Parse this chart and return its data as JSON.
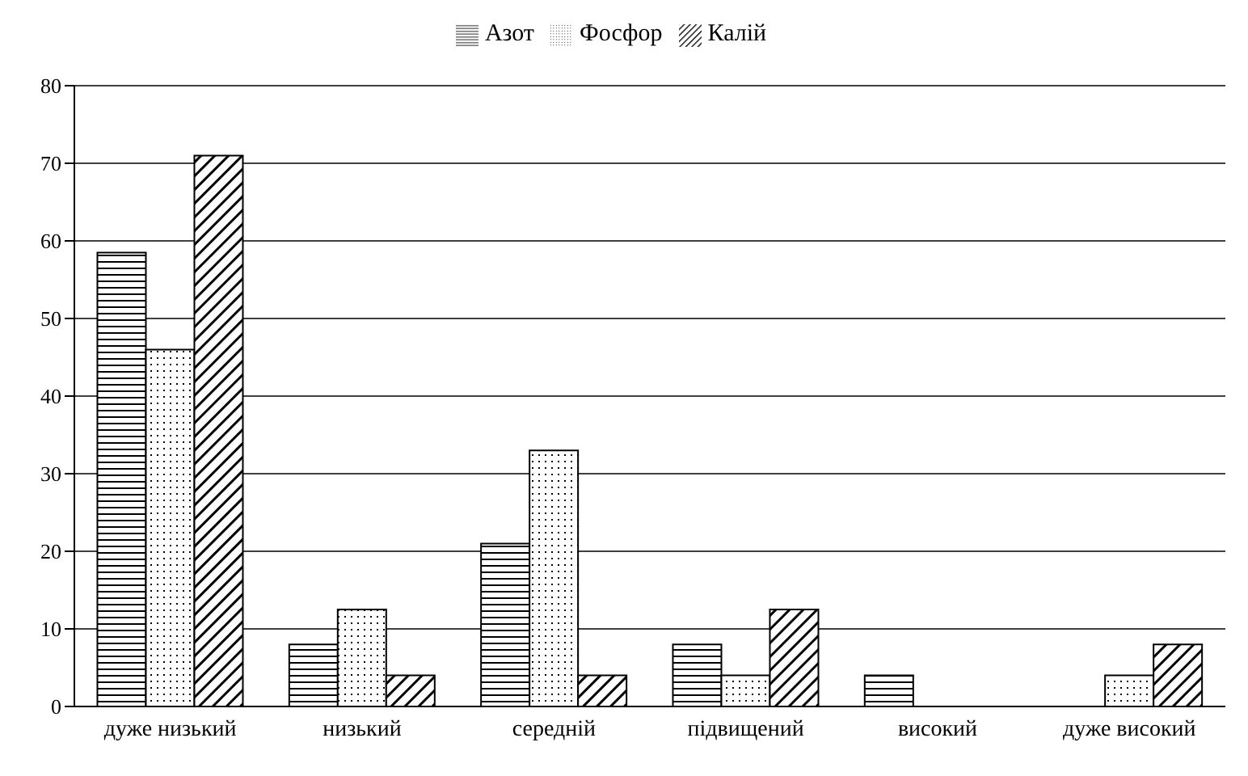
{
  "chart_data": {
    "type": "bar",
    "categories": [
      "дуже низький",
      "низький",
      "середній",
      "підвищений",
      "високий",
      "дуже високий"
    ],
    "series": [
      {
        "name": "Азот",
        "color": "#000000",
        "values": [
          58.5,
          8,
          21,
          8,
          4,
          0
        ]
      },
      {
        "name": "Фосфор",
        "color": "#000000",
        "values": [
          46,
          12.5,
          33,
          4,
          0,
          4
        ]
      },
      {
        "name": "Калій",
        "color": "#000000",
        "values": [
          71,
          4,
          4,
          12.5,
          0,
          8
        ]
      }
    ],
    "ylim": [
      0,
      80
    ],
    "yticks": [
      0,
      10,
      20,
      30,
      40,
      50,
      60,
      70,
      80
    ],
    "grid": "y",
    "legend": "top"
  }
}
